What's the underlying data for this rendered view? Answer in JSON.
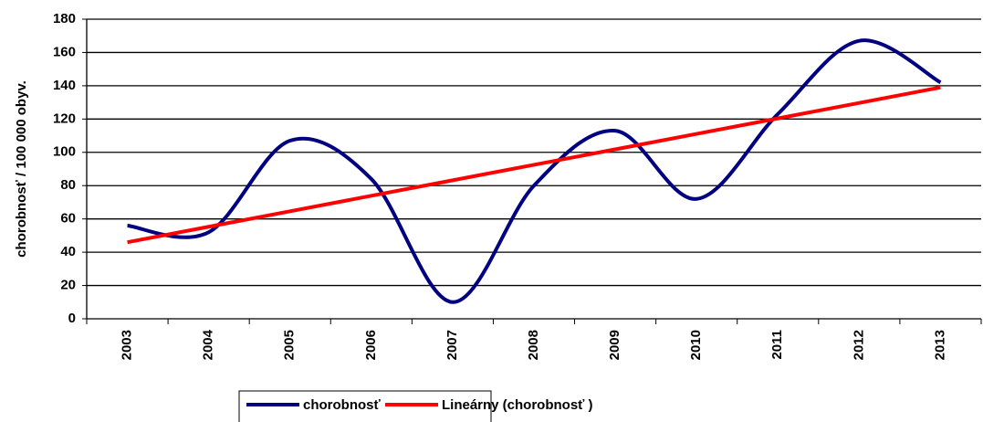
{
  "chart_data": {
    "type": "line",
    "y_label": "chorobnosť / 100 000 obyv.",
    "categories": [
      "2003",
      "2004",
      "2005",
      "2006",
      "2007",
      "2008",
      "2009",
      "2010",
      "2011",
      "2012",
      "2013"
    ],
    "series": [
      {
        "name": "chorobnosť",
        "color": "#000080",
        "smooth": true,
        "values": [
          56,
          52,
          107,
          84,
          10,
          80,
          113,
          72,
          123,
          167,
          142
        ]
      },
      {
        "name": "Lineárny (chorobnosť )",
        "color": "#ff0000",
        "smooth": false,
        "values": [
          46,
          55.3,
          64.6,
          73.9,
          83.2,
          92.5,
          101.8,
          111.1,
          120.4,
          129.7,
          139
        ]
      }
    ],
    "ylim": [
      0,
      180
    ],
    "yticks": [
      0,
      20,
      40,
      60,
      80,
      100,
      120,
      140,
      160,
      180
    ],
    "grid": true,
    "legend": "bottom"
  }
}
